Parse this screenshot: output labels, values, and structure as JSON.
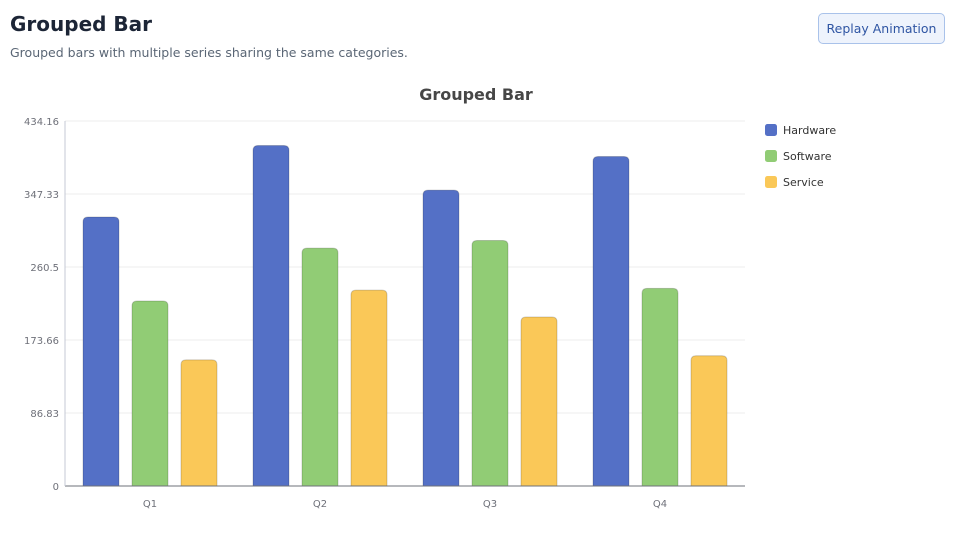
{
  "header": {
    "title": "Grouped Bar",
    "subtitle": "Grouped bars with multiple series sharing the same categories.",
    "replay_label": "Replay Animation"
  },
  "colors": {
    "hardware": "#5470c6",
    "software": "#91cc75",
    "service": "#fac858",
    "grid": "#eeeeee",
    "axis": "#6e7079"
  },
  "chart_data": {
    "type": "bar",
    "title": "Grouped Bar",
    "categories": [
      "Q1",
      "Q2",
      "Q3",
      "Q4"
    ],
    "series": [
      {
        "name": "Hardware",
        "values": [
          320,
          405,
          352,
          392
        ]
      },
      {
        "name": "Software",
        "values": [
          220,
          283,
          292,
          235
        ]
      },
      {
        "name": "Service",
        "values": [
          150,
          233,
          201,
          155
        ]
      }
    ],
    "y_ticks": [
      "0",
      "86.83",
      "173.66",
      "260.5",
      "347.33",
      "434.16"
    ],
    "ylim": [
      0,
      434.16
    ],
    "grid": true,
    "legend": "right"
  }
}
